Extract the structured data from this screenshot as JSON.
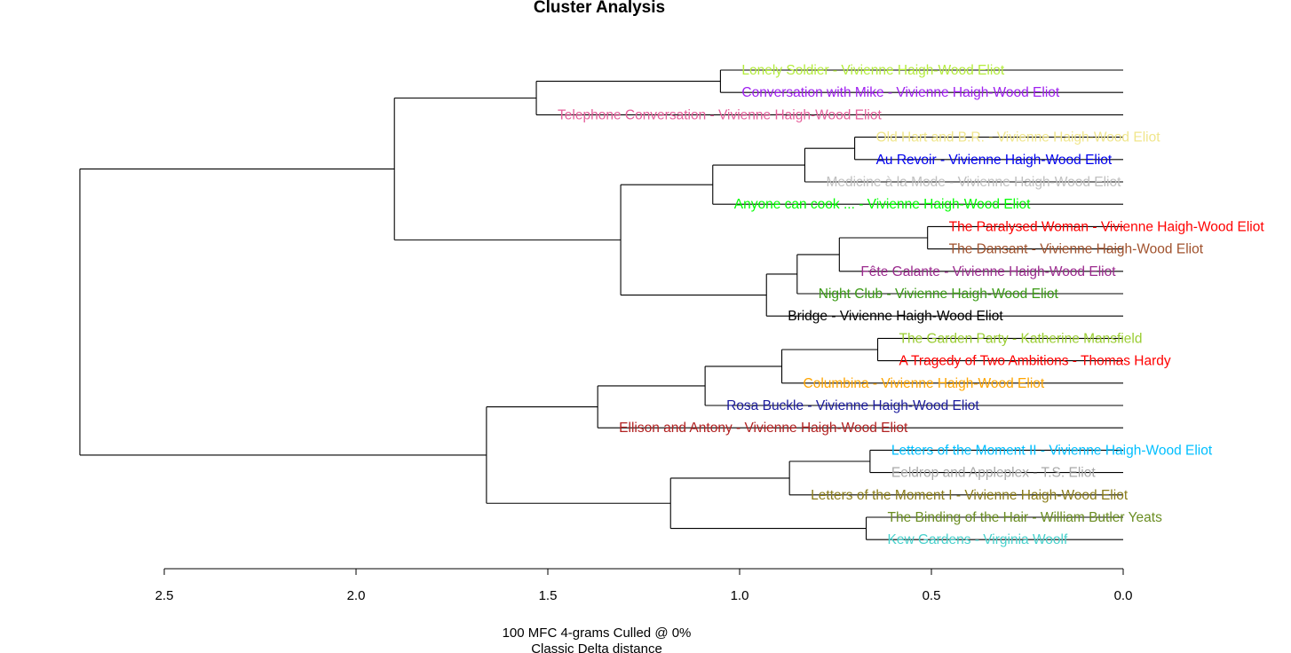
{
  "chart_data": {
    "type": "dendrogram",
    "title": "Cluster Analysis",
    "xlabel_lines": [
      "100 MFC 4-grams Culled @ 0%",
      "Classic Delta distance"
    ],
    "axis": {
      "ticks": [
        2.5,
        2.0,
        1.5,
        1.0,
        0.5,
        0.0
      ],
      "tick_labels": [
        "2.5",
        "2.0",
        "1.5",
        "1.0",
        "0.5",
        "0.0"
      ],
      "range": [
        2.5,
        0.0
      ]
    },
    "leaves": [
      {
        "label": "Lonely Soldier - Vivienne Haigh-Wood Eliot",
        "color": "#b4ec3c"
      },
      {
        "label": "Conversation with Mike - Vivienne Haigh-Wood Eliot",
        "color": "#a020f0"
      },
      {
        "label": "Telephone Conversation - Vivienne Haigh-Wood Eliot",
        "color": "#e6609c"
      },
      {
        "label": "Old Hart and B.R. - Vivienne Haigh-Wood Eliot",
        "color": "#f0e68c"
      },
      {
        "label": "Au Revoir - Vivienne Haigh-Wood Eliot",
        "color": "#0000ee"
      },
      {
        "label": "Medicine à la Mode - Vivienne Haigh-Wood Eliot",
        "color": "#c0c0c0"
      },
      {
        "label": "Anyone can cook ... - Vivienne Haigh-Wood Eliot",
        "color": "#00ff00"
      },
      {
        "label": "The Paralysed Woman - Vivienne Haigh-Wood Eliot",
        "color": "#ff0000"
      },
      {
        "label": "The Dansant - Vivienne Haigh-Wood Eliot",
        "color": "#a0522d"
      },
      {
        "label": "Fête Galante - Vivienne Haigh-Wood Eliot",
        "color": "#9b2b8e"
      },
      {
        "label": "Night Club - Vivienne Haigh-Wood Eliot",
        "color": "#3a9a14"
      },
      {
        "label": "Bridge - Vivienne Haigh-Wood Eliot",
        "color": "#000000"
      },
      {
        "label": "The Garden Party - Katherine Mansfield",
        "color": "#9acd32"
      },
      {
        "label": "A Tragedy of Two Ambitions - Thomas Hardy",
        "color": "#ff0000"
      },
      {
        "label": "Columbina - Vivienne Haigh-Wood Eliot",
        "color": "#ffa500"
      },
      {
        "label": "Rosa Buckle - Vivienne Haigh-Wood Eliot",
        "color": "#1c1c9c"
      },
      {
        "label": "Ellison and Antony - Vivienne Haigh-Wood Eliot",
        "color": "#b22222"
      },
      {
        "label": "Letters of the Moment II - Vivienne Haigh-Wood Eliot",
        "color": "#00bfff"
      },
      {
        "label": "Eeldrop and Appleplex - T.S. Eliot",
        "color": "#a9a9a9"
      },
      {
        "label": "Letters of the Moment I - Vivienne Haigh-Wood Eliot",
        "color": "#8b7d1a"
      },
      {
        "label": "The Binding of the Hair - William Butler Yeats",
        "color": "#6b8e23"
      },
      {
        "label": "Kew Gardens - Virginia Woolf",
        "color": "#48d1cc"
      }
    ],
    "merges": [
      {
        "a": "L0",
        "b": "L1",
        "height": 1.05
      },
      {
        "a": "M0",
        "b": "L2",
        "height": 1.53
      },
      {
        "a": "L3",
        "b": "L4",
        "height": 0.7
      },
      {
        "a": "M2",
        "b": "L5",
        "height": 0.83
      },
      {
        "a": "M3",
        "b": "L6",
        "height": 1.07
      },
      {
        "a": "L7",
        "b": "L8",
        "height": 0.51
      },
      {
        "a": "M5",
        "b": "L9",
        "height": 0.74
      },
      {
        "a": "M6",
        "b": "L10",
        "height": 0.85
      },
      {
        "a": "M7",
        "b": "L11",
        "height": 0.93
      },
      {
        "a": "M4",
        "b": "M8",
        "height": 1.31
      },
      {
        "a": "M1",
        "b": "M9",
        "height": 1.9
      },
      {
        "a": "L12",
        "b": "L13",
        "height": 0.64
      },
      {
        "a": "M11",
        "b": "L14",
        "height": 0.89
      },
      {
        "a": "M12",
        "b": "L15",
        "height": 1.09
      },
      {
        "a": "M13",
        "b": "L16",
        "height": 1.37
      },
      {
        "a": "L17",
        "b": "L18",
        "height": 0.66
      },
      {
        "a": "M15",
        "b": "L19",
        "height": 0.87
      },
      {
        "a": "L20",
        "b": "L21",
        "height": 0.67
      },
      {
        "a": "M16",
        "b": "M17",
        "height": 1.18
      },
      {
        "a": "M14",
        "b": "M18",
        "height": 1.66
      },
      {
        "a": "M10",
        "b": "M19",
        "height": 2.72
      }
    ]
  }
}
